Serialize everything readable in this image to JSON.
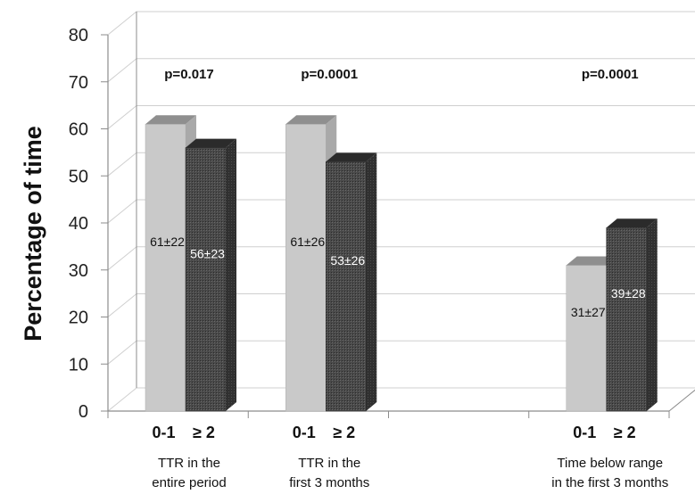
{
  "chart_data": {
    "type": "bar",
    "style": "3d-clustered",
    "ylabel": "Percentage of time",
    "ylim": [
      0,
      80
    ],
    "yticks": [
      0,
      10,
      20,
      30,
      40,
      50,
      60,
      70,
      80
    ],
    "grid": true,
    "groups": [
      {
        "category_lines": [
          "TTR  in the",
          "entire period"
        ],
        "p_value": "p=0.017",
        "bars": [
          {
            "label": "0-1",
            "value": 61,
            "data_label": "61±22"
          },
          {
            "label": "≥ 2",
            "value": 56,
            "data_label": "56±23"
          }
        ]
      },
      {
        "category_lines": [
          "TTR  in the",
          "first 3 months"
        ],
        "p_value": "p=0.0001",
        "bars": [
          {
            "label": "0-1",
            "value": 61,
            "data_label": "61±26"
          },
          {
            "label": "≥ 2",
            "value": 53,
            "data_label": "53±26"
          }
        ]
      },
      {
        "category_lines": [
          "Time below range",
          "in the first 3 months"
        ],
        "p_value": "p=0.0001",
        "bars": [
          {
            "label": "0-1",
            "value": 31,
            "data_label": "31±27"
          },
          {
            "label": "≥ 2",
            "value": 39,
            "data_label": "39±28"
          }
        ]
      }
    ],
    "colors": {
      "light_front": "#c9c9c9",
      "light_top": "#8f8f8f",
      "light_side": "#a9a9a9",
      "dark_front": "#4a4a4a",
      "dark_top": "#2b2b2b",
      "dark_side": "#333333",
      "grid": "#cfcfcf",
      "axis": "#8c8c8c"
    }
  }
}
